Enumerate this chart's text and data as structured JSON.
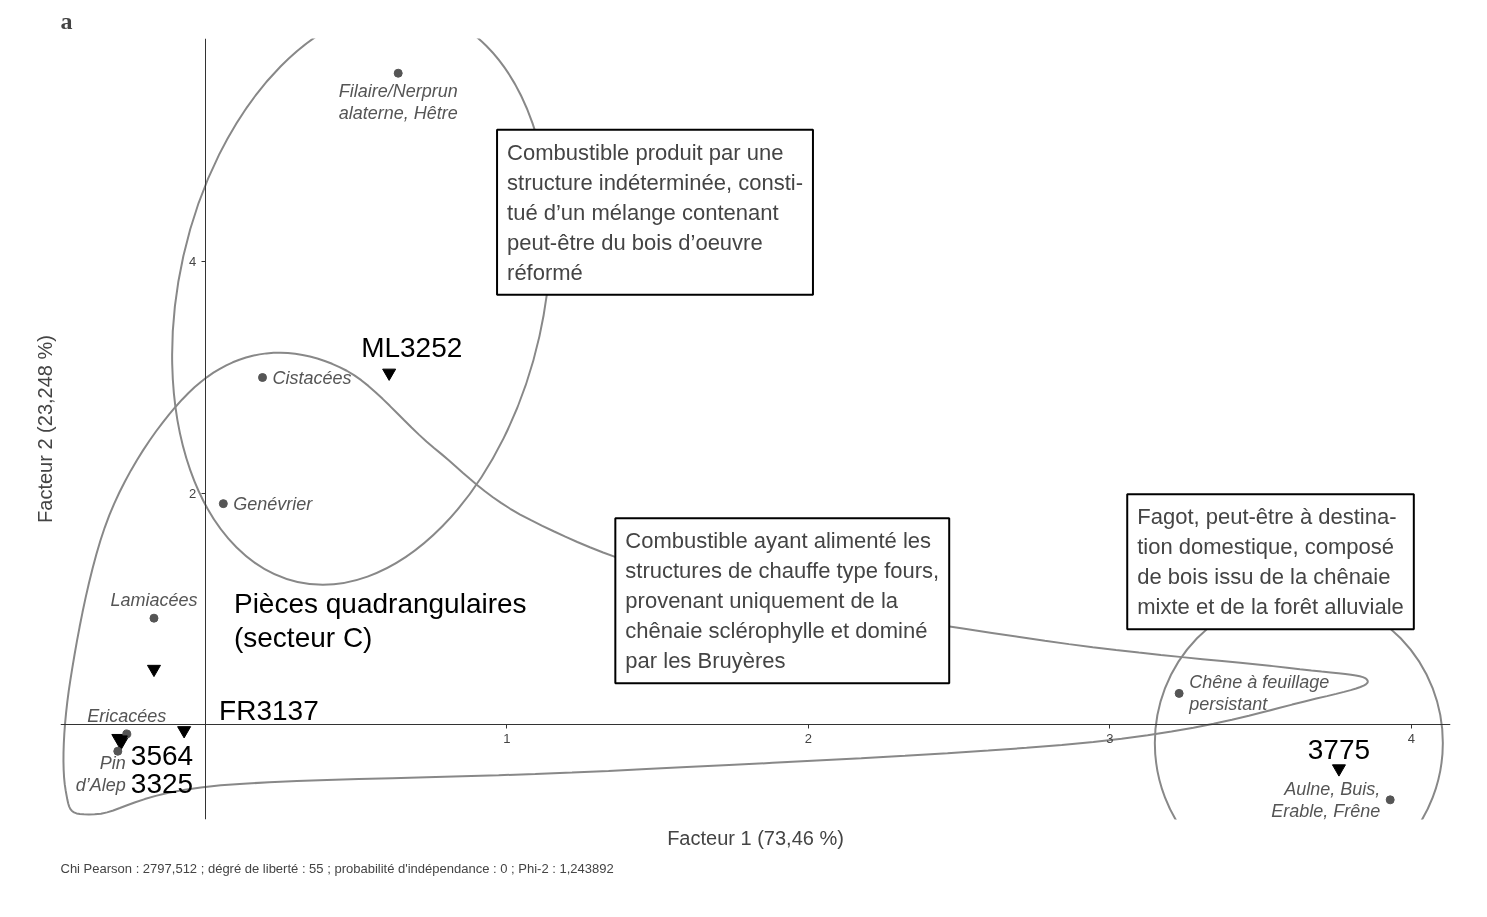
{
  "chart_data": {
    "type": "scatter",
    "title": "a",
    "xlabel": "Facteur 1 (73,46 %)",
    "ylabel": "Facteur 2 (23,248 %)",
    "xlim": [
      -0.48,
      4.13
    ],
    "ylim": [
      -0.82,
      5.93
    ],
    "xticks": [
      1,
      2,
      3,
      4
    ],
    "yticks": [
      2,
      4
    ],
    "grid": false,
    "series": [
      {
        "name": "Filaire/Nerprun\nalaterne, Hêtre",
        "color": "#555555",
        "marker": "circle",
        "x": [
          0.64
        ],
        "values": [
          5.63
        ]
      },
      {
        "name": "Cistacées",
        "color": "#555555",
        "marker": "circle",
        "x": [
          0.19
        ],
        "values": [
          3.0
        ]
      },
      {
        "name": "Genévrier",
        "color": "#555555",
        "marker": "circle",
        "x": [
          0.06
        ],
        "values": [
          1.91
        ]
      },
      {
        "name": "Lamiacées",
        "color": "#555555",
        "marker": "circle",
        "x": [
          -0.17
        ],
        "values": [
          0.92
        ]
      },
      {
        "name": "Ericacées",
        "color": "#555555",
        "marker": "circle",
        "x": [
          -0.26
        ],
        "values": [
          -0.08
        ]
      },
      {
        "name": "Pin\nd’Alep",
        "color": "#555555",
        "marker": "circle",
        "x": [
          -0.29
        ],
        "values": [
          -0.23
        ]
      },
      {
        "name": "Chêne à feuillage\npersistant",
        "color": "#555555",
        "marker": "circle",
        "x": [
          3.23
        ],
        "values": [
          0.27
        ]
      },
      {
        "name": "Aulne, Buis,\nErable, Frêne",
        "color": "#555555",
        "marker": "circle",
        "x": [
          3.93
        ],
        "values": [
          -0.65
        ]
      },
      {
        "name": "ML3252",
        "color": "#000000",
        "marker": "triangle",
        "x": [
          0.61
        ],
        "values": [
          3.04
        ]
      },
      {
        "name": "Pièces quadrangulaires\n(secteur C)",
        "color": "#000000",
        "marker": "triangle",
        "x": [
          -0.17
        ],
        "values": [
          0.48
        ]
      },
      {
        "name": "FR3137",
        "color": "#000000",
        "marker": "triangle",
        "x": [
          -0.07
        ],
        "values": [
          -0.05
        ]
      },
      {
        "name": "3564",
        "color": "#000000",
        "marker": "triangle",
        "x": [
          -0.28
        ],
        "values": [
          -0.13
        ]
      },
      {
        "name": "3325",
        "color": "#000000",
        "marker": "triangle",
        "x": [
          -0.28
        ],
        "values": [
          -0.13
        ]
      },
      {
        "name": "3775",
        "color": "#000000",
        "marker": "triangle",
        "x": [
          3.76
        ],
        "values": [
          -0.38
        ]
      }
    ],
    "annotations": [
      "Combustible produit par une\nstructure indéterminée, consti-\ntué d’un mélange contenant\npeut-être du bois d’oeuvre\nréformé",
      "Combustible ayant alimenté les\nstructures de chauffe type fours,\nprovenant uniquement de la\nchênaie sclérophylle et dominé\npar les Bruyères",
      "Fagot, peut-être à destina-\ntion domestique, composé\nde bois issu de la chênaie\nmixte et de la forêt alluviale",
      "Chi Pearson : 2797,512 ; dégré de liberté : 55 ; probabilité d'indépendance : 0 ; Phi-2 : 1,243892"
    ]
  }
}
